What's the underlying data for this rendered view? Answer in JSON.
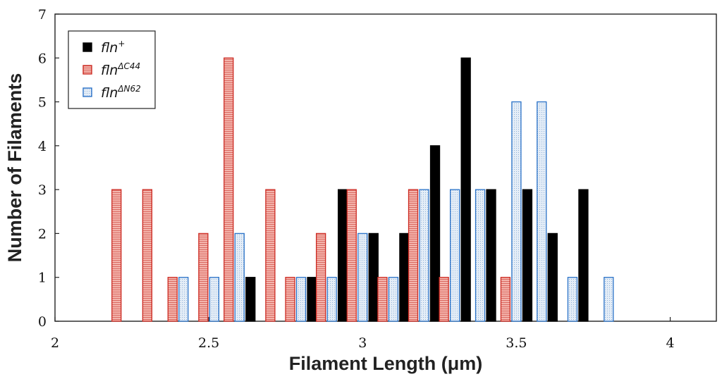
{
  "chart_data": {
    "type": "bar",
    "title": "",
    "xlabel": "Filament Length (μm)",
    "ylabel": "Number of Filaments",
    "xlim": [
      2,
      4.15
    ],
    "ylim": [
      0,
      7
    ],
    "xticks": [
      "2",
      "2.5",
      "3",
      "3.5",
      "4"
    ],
    "yticks": [
      "0",
      "1",
      "2",
      "3",
      "4",
      "5",
      "6",
      "7"
    ],
    "legend_position": "top-left",
    "grid": false,
    "series": [
      {
        "name": "fln+",
        "label_base": "fln",
        "label_sup": "+",
        "style": "solid",
        "fill": "#000000",
        "stroke": "#000000",
        "points": [
          {
            "x": 2.6,
            "y": 1
          },
          {
            "x": 2.8,
            "y": 1
          },
          {
            "x": 2.9,
            "y": 3
          },
          {
            "x": 3.0,
            "y": 2
          },
          {
            "x": 3.1,
            "y": 2
          },
          {
            "x": 3.2,
            "y": 4
          },
          {
            "x": 3.3,
            "y": 6
          },
          {
            "x": 3.4,
            "y": 3
          },
          {
            "x": 3.5,
            "y": 3
          },
          {
            "x": 3.6,
            "y": 2
          },
          {
            "x": 3.7,
            "y": 3
          }
        ]
      },
      {
        "name": "flnΔC44",
        "label_base": "fln",
        "label_sup": "ΔC44",
        "style": "hatched",
        "fill": "#f4b4ac",
        "stroke": "#cc2a22",
        "points": [
          {
            "x": 2.2,
            "y": 3
          },
          {
            "x": 2.3,
            "y": 3
          },
          {
            "x": 2.4,
            "y": 1
          },
          {
            "x": 2.5,
            "y": 2
          },
          {
            "x": 2.6,
            "y": 6
          },
          {
            "x": 2.7,
            "y": 3
          },
          {
            "x": 2.8,
            "y": 1
          },
          {
            "x": 2.9,
            "y": 2
          },
          {
            "x": 3.0,
            "y": 3
          },
          {
            "x": 3.1,
            "y": 1
          },
          {
            "x": 3.2,
            "y": 3
          },
          {
            "x": 3.3,
            "y": 1
          },
          {
            "x": 3.5,
            "y": 1
          }
        ]
      },
      {
        "name": "flnΔN62",
        "label_base": "fln",
        "label_sup": "ΔN62",
        "style": "dotted",
        "fill": "#dde8f4",
        "stroke": "#2a72c8",
        "points": [
          {
            "x": 2.4,
            "y": 1
          },
          {
            "x": 2.5,
            "y": 1
          },
          {
            "x": 2.6,
            "y": 2
          },
          {
            "x": 2.8,
            "y": 1
          },
          {
            "x": 2.9,
            "y": 1
          },
          {
            "x": 3.0,
            "y": 2
          },
          {
            "x": 3.1,
            "y": 1
          },
          {
            "x": 3.2,
            "y": 3
          },
          {
            "x": 3.3,
            "y": 3
          },
          {
            "x": 3.4,
            "y": 3
          },
          {
            "x": 3.5,
            "y": 5
          },
          {
            "x": 3.6,
            "y": 5
          },
          {
            "x": 3.7,
            "y": 1
          },
          {
            "x": 3.8,
            "y": 1
          }
        ]
      }
    ]
  }
}
